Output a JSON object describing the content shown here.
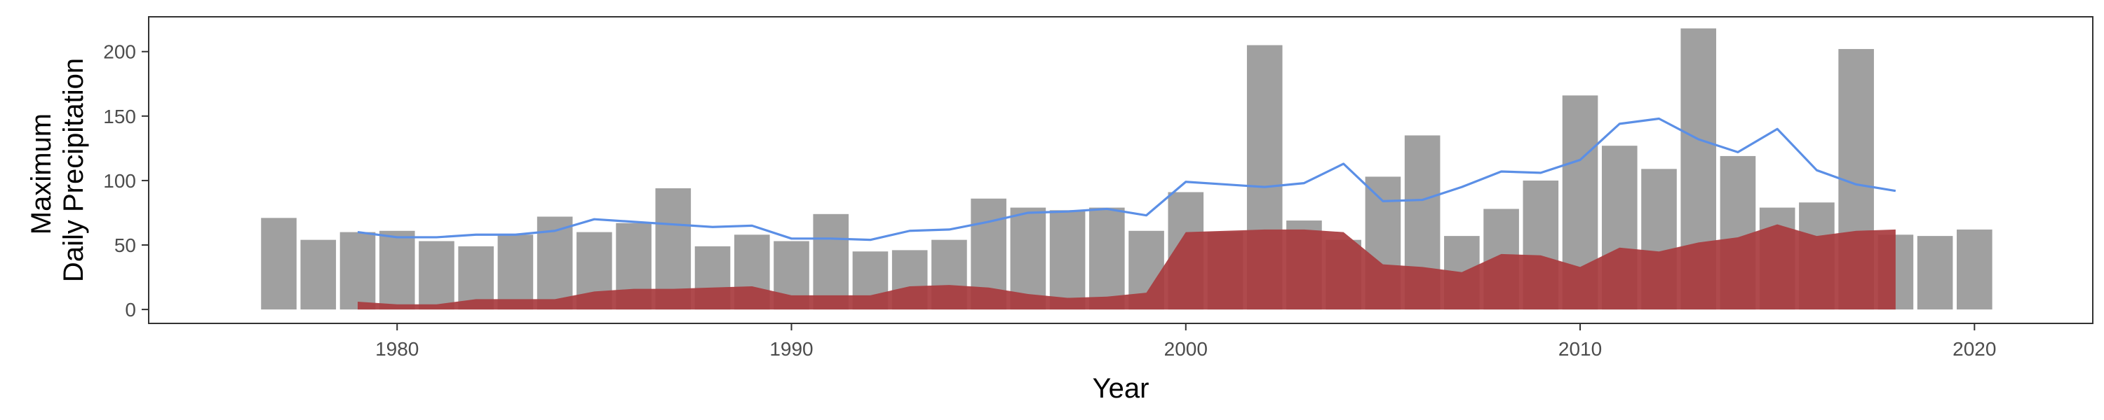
{
  "chart_data": {
    "type": "bar",
    "xlabel": "Year",
    "ylabel_lines": [
      "Maximum",
      "Daily Precipitation"
    ],
    "x_ticks": [
      1980,
      1990,
      2000,
      2010,
      2020
    ],
    "y_ticks": [
      0,
      50,
      100,
      150,
      200
    ],
    "xlim": [
      1973.7,
      2023.0
    ],
    "ylim": [
      -10.8,
      227.0
    ],
    "grid": false,
    "legend": "none",
    "colors": {
      "bars": "#a0a0a0",
      "area": "#a83b3e",
      "line": "#5b8fe6",
      "frame": "#333333"
    },
    "series": [
      {
        "type": "bar",
        "x": [
          1977,
          1978,
          1979,
          1980,
          1981,
          1982,
          1983,
          1984,
          1985,
          1986,
          1987,
          1988,
          1989,
          1990,
          1991,
          1992,
          1993,
          1994,
          1995,
          1996,
          1997,
          1998,
          1999,
          2000,
          2001,
          2002,
          2003,
          2004,
          2005,
          2006,
          2007,
          2008,
          2009,
          2010,
          2011,
          2012,
          2013,
          2014,
          2015,
          2016,
          2017,
          2018,
          2019,
          2020
        ],
        "values": [
          71,
          54,
          60,
          61,
          53,
          49,
          58,
          72,
          60,
          67,
          94,
          49,
          58,
          53,
          74,
          45,
          46,
          54,
          86,
          79,
          77,
          79,
          61,
          91,
          60,
          205,
          69,
          54,
          103,
          135,
          57,
          78,
          100,
          166,
          127,
          109,
          218,
          119,
          79,
          83,
          202,
          58,
          57,
          62
        ]
      },
      {
        "type": "area",
        "x": [
          1979,
          1980,
          1981,
          1982,
          1983,
          1984,
          1985,
          1986,
          1987,
          1988,
          1989,
          1990,
          1991,
          1992,
          1993,
          1994,
          1995,
          1996,
          1997,
          1998,
          1999,
          2000,
          2001,
          2002,
          2003,
          2004,
          2005,
          2006,
          2007,
          2008,
          2009,
          2010,
          2011,
          2012,
          2013,
          2014,
          2015,
          2016,
          2017,
          2018
        ],
        "values": [
          6,
          4,
          4,
          8,
          8,
          8,
          14,
          16,
          16,
          17,
          18,
          11,
          11,
          11,
          18,
          19,
          17,
          12,
          9,
          10,
          13,
          60,
          61,
          62,
          62,
          60,
          35,
          33,
          29,
          43,
          42,
          33,
          48,
          45,
          52,
          56,
          66,
          57,
          61,
          62
        ]
      },
      {
        "type": "line",
        "x": [
          1979,
          1980,
          1981,
          1982,
          1983,
          1984,
          1985,
          1986,
          1987,
          1988,
          1989,
          1990,
          1991,
          1992,
          1993,
          1994,
          1995,
          1996,
          1997,
          1998,
          1999,
          2000,
          2001,
          2002,
          2003,
          2004,
          2005,
          2006,
          2007,
          2008,
          2009,
          2010,
          2011,
          2012,
          2013,
          2014,
          2015,
          2016,
          2017,
          2018
        ],
        "values": [
          60,
          56,
          56,
          58,
          58,
          61,
          70,
          68,
          66,
          64,
          65,
          55,
          55,
          54,
          61,
          62,
          68,
          75,
          76,
          78,
          73,
          99,
          97,
          95,
          98,
          113,
          84,
          85,
          95,
          107,
          106,
          116,
          144,
          148,
          132,
          122,
          140,
          108,
          97,
          92
        ]
      }
    ]
  }
}
